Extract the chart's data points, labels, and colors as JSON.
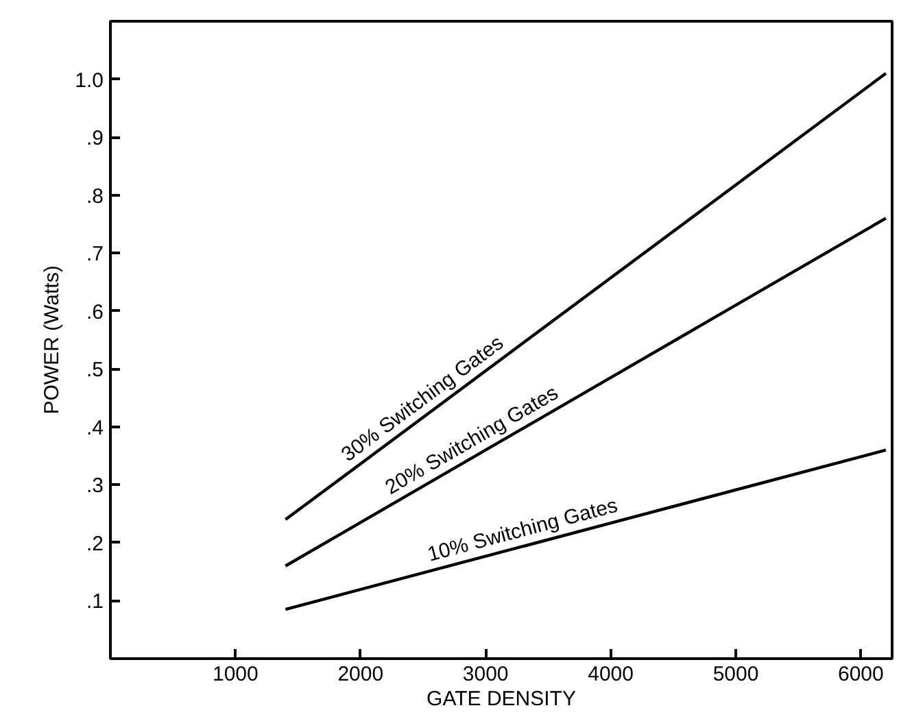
{
  "chart_data": {
    "type": "line",
    "xlabel": "GATE DENSITY",
    "ylabel": "POWER (Watts)",
    "x": [
      1400,
      6200
    ],
    "series": [
      {
        "name": "30% Switching Gates",
        "color": "#000000",
        "values": [
          0.24,
          1.01
        ]
      },
      {
        "name": "20% Switching Gates",
        "color": "#000000",
        "values": [
          0.16,
          0.76
        ]
      },
      {
        "name": "10% Switching Gates",
        "color": "#000000",
        "values": [
          0.085,
          0.36
        ]
      }
    ],
    "xlim": [
      0,
      6250
    ],
    "ylim": [
      0,
      1.1
    ],
    "xticks": [
      1000,
      2000,
      3000,
      4000,
      5000,
      6000
    ],
    "yticks": [
      {
        "value": 0.1,
        "label": ".1"
      },
      {
        "value": 0.2,
        "label": ".2"
      },
      {
        "value": 0.3,
        "label": ".3"
      },
      {
        "value": 0.4,
        "label": ".4"
      },
      {
        "value": 0.5,
        "label": ".5"
      },
      {
        "value": 0.6,
        "label": ".6"
      },
      {
        "value": 0.7,
        "label": ".7"
      },
      {
        "value": 0.8,
        "label": ".8"
      },
      {
        "value": 0.9,
        "label": ".9"
      },
      {
        "value": 1.0,
        "label": "1.0"
      }
    ],
    "grid": false,
    "legend": false,
    "marker": "none",
    "line_style": "solid"
  }
}
